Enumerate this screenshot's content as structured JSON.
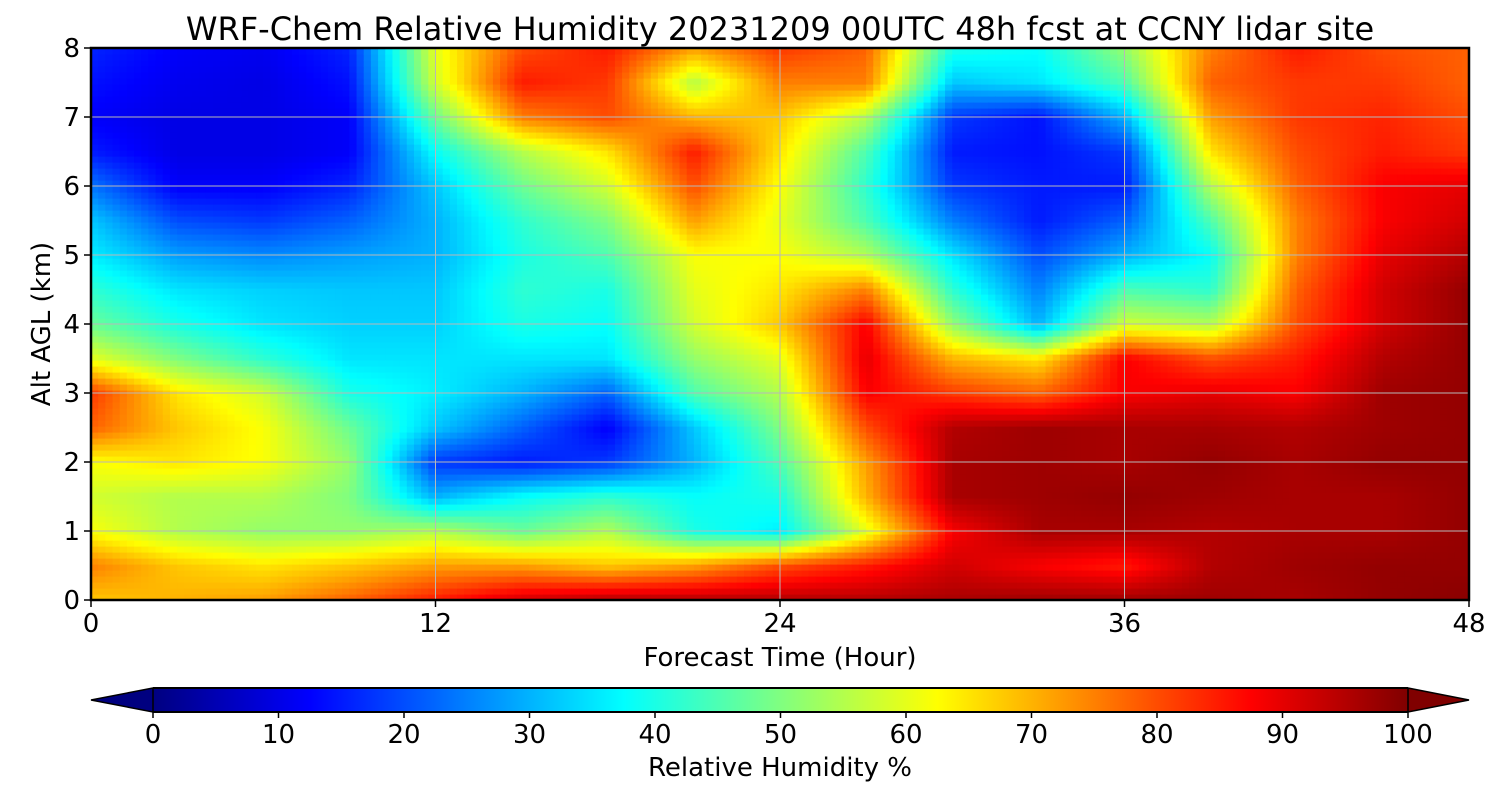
{
  "chart_data": {
    "type": "heatmap",
    "title": "WRF-Chem Relative Humidity 20231209 00UTC 48h fcst at CCNY lidar site",
    "xlabel": "Forecast Time (Hour)",
    "ylabel": "Alt AGL (km)",
    "xlim": [
      0,
      48
    ],
    "ylim": [
      0,
      8
    ],
    "x_ticks": [
      "0",
      "12",
      "24",
      "36",
      "48"
    ],
    "y_ticks": [
      "0",
      "1",
      "2",
      "3",
      "4",
      "5",
      "6",
      "7",
      "8"
    ],
    "grid": true,
    "colorbar": {
      "label": "Relative Humidity %",
      "range": [
        0,
        100
      ],
      "extend": "both",
      "ticks": [
        "0",
        "10",
        "20",
        "30",
        "40",
        "50",
        "60",
        "70",
        "80",
        "90",
        "100"
      ],
      "colormap": "jet"
    },
    "x_hours": [
      0,
      3,
      6,
      9,
      12,
      15,
      18,
      21,
      24,
      27,
      30,
      33,
      36,
      39,
      42,
      45,
      48
    ],
    "z_km": [
      0,
      0.5,
      1,
      1.5,
      2,
      2.5,
      3,
      3.5,
      4,
      4.5,
      5,
      5.5,
      6,
      6.5,
      7,
      7.5,
      8
    ],
    "rh_percent": [
      [
        68,
        70,
        72,
        78,
        85,
        92,
        95,
        95,
        95,
        95,
        96,
        97,
        97,
        97,
        96,
        98,
        99
      ],
      [
        75,
        68,
        65,
        68,
        72,
        72,
        68,
        72,
        80,
        85,
        92,
        88,
        85,
        95,
        97,
        98,
        98
      ],
      [
        62,
        55,
        52,
        52,
        55,
        48,
        55,
        40,
        36,
        60,
        88,
        96,
        96,
        95,
        96,
        96,
        98
      ],
      [
        58,
        55,
        55,
        50,
        30,
        38,
        42,
        38,
        40,
        70,
        96,
        97,
        98,
        97,
        96,
        96,
        98
      ],
      [
        62,
        65,
        62,
        52,
        18,
        15,
        18,
        30,
        45,
        72,
        96,
        97,
        96,
        98,
        96,
        98,
        98
      ],
      [
        78,
        68,
        62,
        48,
        32,
        22,
        12,
        32,
        50,
        80,
        95,
        97,
        96,
        96,
        95,
        97,
        98
      ],
      [
        82,
        65,
        58,
        40,
        36,
        30,
        22,
        45,
        55,
        88,
        82,
        78,
        88,
        90,
        88,
        97,
        98
      ],
      [
        60,
        50,
        42,
        35,
        35,
        35,
        35,
        52,
        60,
        90,
        70,
        65,
        88,
        80,
        85,
        95,
        98
      ],
      [
        48,
        40,
        35,
        33,
        33,
        40,
        38,
        58,
        68,
        88,
        52,
        30,
        58,
        55,
        80,
        92,
        98
      ],
      [
        42,
        35,
        33,
        32,
        32,
        42,
        40,
        60,
        65,
        75,
        42,
        25,
        45,
        42,
        78,
        92,
        98
      ],
      [
        36,
        28,
        26,
        28,
        30,
        40,
        45,
        62,
        62,
        55,
        35,
        20,
        30,
        38,
        75,
        90,
        95
      ],
      [
        32,
        20,
        18,
        22,
        30,
        42,
        50,
        72,
        60,
        45,
        25,
        15,
        22,
        45,
        75,
        88,
        92
      ],
      [
        24,
        12,
        12,
        16,
        32,
        48,
        58,
        80,
        62,
        42,
        18,
        15,
        15,
        55,
        78,
        88,
        90
      ],
      [
        15,
        10,
        10,
        12,
        38,
        55,
        65,
        85,
        65,
        45,
        15,
        14,
        18,
        65,
        80,
        85,
        82
      ],
      [
        12,
        10,
        10,
        12,
        48,
        75,
        80,
        70,
        68,
        55,
        18,
        14,
        30,
        72,
        82,
        84,
        80
      ],
      [
        14,
        11,
        10,
        14,
        58,
        85,
        82,
        55,
        75,
        75,
        32,
        35,
        45,
        78,
        82,
        82,
        78
      ],
      [
        16,
        12,
        11,
        16,
        60,
        80,
        85,
        72,
        82,
        78,
        40,
        38,
        52,
        75,
        85,
        80,
        78
      ]
    ]
  }
}
